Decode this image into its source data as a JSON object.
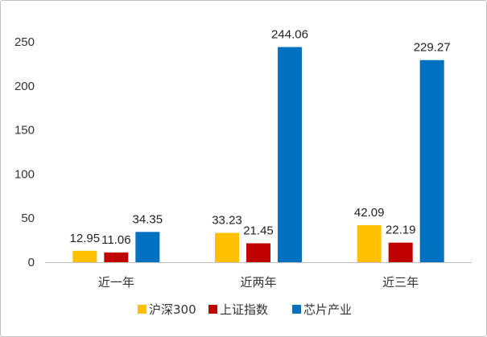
{
  "chart_data": {
    "type": "bar",
    "categories": [
      "近一年",
      "近两年",
      "近三年"
    ],
    "series": [
      {
        "name": "沪深300",
        "values": [
          12.95,
          33.23,
          42.09
        ],
        "color": "#FFC000"
      },
      {
        "name": "上证指数",
        "values": [
          11.06,
          21.45,
          22.19
        ],
        "color": "#C00000"
      },
      {
        "name": "芯片产业",
        "values": [
          34.35,
          244.06,
          229.27
        ],
        "color": "#0070C0"
      }
    ],
    "ylim": [
      0,
      250
    ],
    "yticks": [
      0,
      50,
      100,
      150,
      200,
      250
    ],
    "grid": false,
    "legend_position": "bottom",
    "data_labels": [
      [
        "12.95",
        "33.23",
        "42.09"
      ],
      [
        "11.06",
        "21.45",
        "22.19"
      ],
      [
        "34.35",
        "244.06",
        "229.27"
      ]
    ]
  }
}
